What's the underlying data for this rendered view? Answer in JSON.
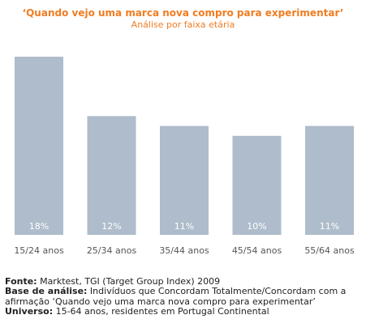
{
  "chart_data": {
    "type": "bar",
    "title": "‘Quando vejo uma marca nova compro para experimentar’",
    "subtitle": "Análise por faixa etária",
    "categories": [
      "15/24 anos",
      "25/34 anos",
      "35/44 anos",
      "45/54 anos",
      "55/64 anos"
    ],
    "values": [
      18,
      12,
      11,
      10,
      11
    ],
    "value_labels": [
      "18%",
      "12%",
      "11%",
      "10%",
      "11%"
    ],
    "unit": "%",
    "ylim": [
      0,
      18
    ],
    "grid": false,
    "legend": "none",
    "bar_color": "#aebccb"
  },
  "footer": {
    "fonte_label": "Fonte:",
    "fonte_text": " Marktest, TGI (Target Group Index) 2009",
    "base_label": "Base de análise:",
    "base_text": "  Indivíduos que Concordam Totalmente/Concordam com a afirmação ‘Quando vejo uma marca nova compro para experimentar’",
    "universo_label": "Universo:",
    "universo_text": " 15-64 anos, residentes em Portugal Continental"
  }
}
